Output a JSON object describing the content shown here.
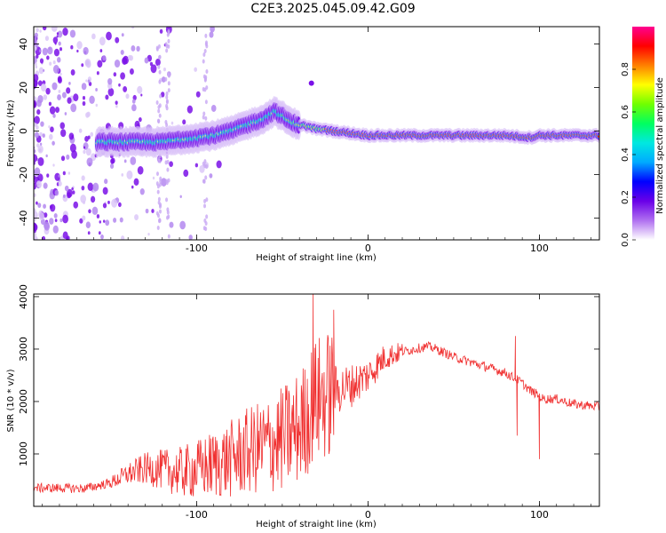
{
  "figure": {
    "title": "C2E3.2025.045.09.42.G09"
  },
  "chart_data": [
    {
      "type": "heatmap",
      "xlabel": "Height of straight line (km)",
      "ylabel": "Frequency (Hz)",
      "xlim": [
        -195,
        135
      ],
      "ylim": [
        -50,
        48
      ],
      "x_ticks": [
        -100,
        0,
        100
      ],
      "y_ticks": [
        -40,
        -20,
        0,
        20,
        40
      ],
      "colorbar": {
        "label": "Normalized spectral amplitude",
        "range": [
          0,
          1
        ],
        "ticks": [
          "0.0",
          "0.2",
          "0.4",
          "0.6",
          "0.8"
        ],
        "colors": [
          "#ffffff",
          "#b070f0",
          "#6a00e8",
          "#0000ff",
          "#00aaff",
          "#00e8e0",
          "#00ff60",
          "#70ff00",
          "#ffff00",
          "#ff8000",
          "#ff0000",
          "#ff0090"
        ]
      },
      "ridge": {
        "x": [
          -155,
          -140,
          -120,
          -110,
          -100,
          -90,
          -80,
          -70,
          -60,
          -55,
          -50,
          -45,
          -40,
          -35,
          -30,
          -20,
          -10,
          0,
          20,
          50,
          80,
          95,
          100,
          135
        ],
        "frequency": [
          -5,
          -5,
          -5,
          -4,
          -3,
          -2,
          0,
          3,
          6,
          9,
          7,
          4,
          3,
          2,
          1,
          0,
          -1,
          -2,
          -2,
          -2,
          -2,
          -3,
          -2,
          -2
        ]
      }
    },
    {
      "type": "line",
      "xlabel": "Height of straight line (km)",
      "ylabel": "SNR (10 * v/v)",
      "xlim": [
        -195,
        135
      ],
      "ylim": [
        0,
        4050
      ],
      "x_ticks": [
        -100,
        0,
        100
      ],
      "y_ticks": [
        1000,
        2000,
        3000,
        4000
      ],
      "series": [
        {
          "color": "#f03030",
          "x": [
            -195,
            -180,
            -165,
            -150,
            -140,
            -130,
            -120,
            -110,
            -100,
            -90,
            -80,
            -70,
            -60,
            -50,
            -40,
            -35,
            -32,
            -30,
            -25,
            -20,
            -10,
            0,
            10,
            20,
            30,
            35,
            40,
            50,
            60,
            70,
            80,
            85,
            88,
            90,
            95,
            98,
            100,
            102,
            110,
            120,
            135
          ],
          "y": [
            350,
            350,
            340,
            450,
            620,
            720,
            700,
            650,
            700,
            800,
            900,
            1050,
            1150,
            1280,
            1500,
            1750,
            2000,
            2050,
            2100,
            2200,
            2300,
            2500,
            2850,
            2950,
            3020,
            3050,
            3000,
            2850,
            2750,
            2650,
            2550,
            2450,
            2400,
            2350,
            2200,
            2150,
            2100,
            2050,
            2050,
            1950,
            1900
          ],
          "peaks": [
            {
              "x": -32,
              "y": 4050
            },
            {
              "x": -20,
              "y": 3750
            },
            {
              "x": 86,
              "y": 3250
            },
            {
              "x": 87,
              "y": 1350
            },
            {
              "x": 100,
              "y": 900
            }
          ]
        }
      ]
    }
  ]
}
